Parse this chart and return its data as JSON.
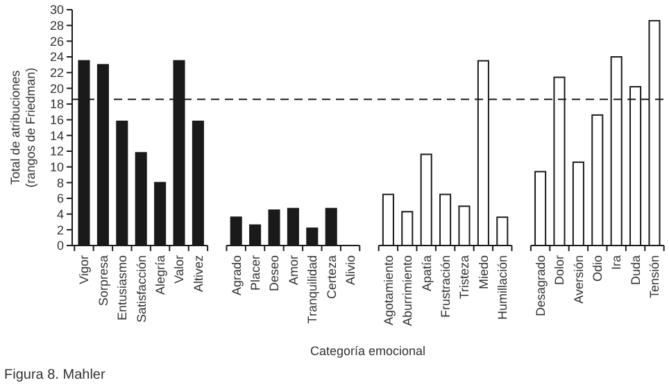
{
  "chart_data": {
    "type": "bar",
    "xlabel": "Categoría emocional",
    "ylabel": "Total de atribuciones\n(rangos de Friedman)",
    "categories": [
      "Vigor",
      "Sorpresa",
      "Entusiasmo",
      "Satisfacción",
      "Alegría",
      "Valor",
      "Altivez",
      null,
      "Agrado",
      "Placer",
      "Deseo",
      "Amor",
      "Tranquilidad",
      "Certeza",
      "Alivio",
      null,
      "Agotamiento",
      "Aburrimiento",
      "Apatía",
      "Frustración",
      "Tristeza",
      "Miedo",
      "Humillación",
      null,
      "Desagrado",
      "Dolor",
      "Aversión",
      "Odio",
      "Ira",
      "Duda",
      "Tensión"
    ],
    "values": [
      23.5,
      23,
      15.8,
      11.8,
      8,
      23.5,
      15.8,
      null,
      3.6,
      2.6,
      4.5,
      4.7,
      2.2,
      4.7,
      0,
      null,
      6.5,
      4.3,
      11.6,
      6.5,
      5,
      23.5,
      3.6,
      null,
      9.4,
      21.4,
      10.6,
      16.6,
      24,
      20.2,
      28.6
    ],
    "colors": [
      "#1a1a1a",
      "#1a1a1a",
      "#1a1a1a",
      "#1a1a1a",
      "#1a1a1a",
      "#1a1a1a",
      "#1a1a1a",
      null,
      "#1a1a1a",
      "#1a1a1a",
      "#1a1a1a",
      "#1a1a1a",
      "#1a1a1a",
      "#1a1a1a",
      "#1a1a1a",
      null,
      "#ffffff",
      "#ffffff",
      "#ffffff",
      "#ffffff",
      "#ffffff",
      "#ffffff",
      "#ffffff",
      null,
      "#ffffff",
      "#ffffff",
      "#ffffff",
      "#ffffff",
      "#ffffff",
      "#ffffff",
      "#ffffff"
    ],
    "ylim": [
      0,
      30
    ],
    "yticks": [
      0,
      2,
      4,
      6,
      8,
      10,
      12,
      14,
      16,
      18,
      20,
      22,
      24,
      26,
      28,
      30
    ],
    "ref_lines": [
      {
        "axis": "y",
        "value": 18.6,
        "line_style": "dashed",
        "color": "#1a1a1a"
      }
    ],
    "annotations": [
      "Figura 8. Mahler"
    ],
    "grid": false
  }
}
